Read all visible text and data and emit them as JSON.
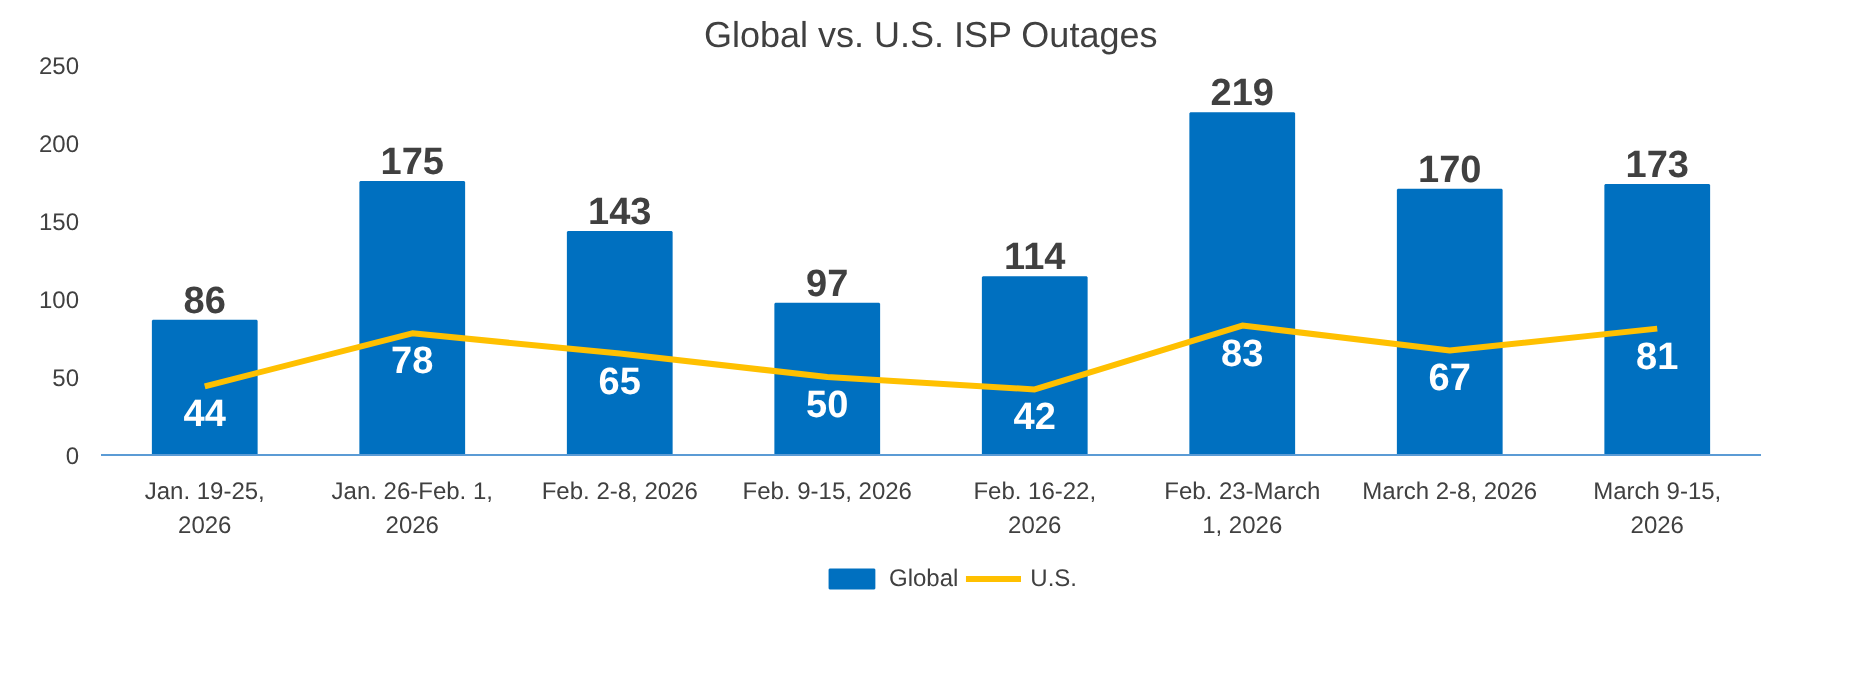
{
  "chart_data": {
    "type": "bar",
    "title": "Global vs. U.S. ISP Outages",
    "categories": [
      "Jan. 19-25, 2026",
      "Jan. 26-Feb. 1, 2026",
      "Feb. 2-8, 2026",
      "Feb. 9-15, 2026",
      "Feb. 16-22, 2026",
      "Feb. 23-March 1, 2026",
      "March 2-8, 2026",
      "March 9-15, 2026"
    ],
    "series": [
      {
        "name": "Global",
        "color": "#0070c0",
        "values": [
          86,
          175,
          143,
          97,
          114,
          219,
          170,
          173
        ]
      },
      {
        "name": "U.S.",
        "type": "line",
        "color": "#ffc000",
        "values": [
          44,
          78,
          65,
          50,
          42,
          83,
          67,
          81
        ]
      }
    ],
    "ylim": [
      0,
      250
    ],
    "yticks": [
      0,
      50,
      100,
      150,
      200,
      250
    ],
    "grid": false,
    "legend": "bottom",
    "data_labels": true
  }
}
